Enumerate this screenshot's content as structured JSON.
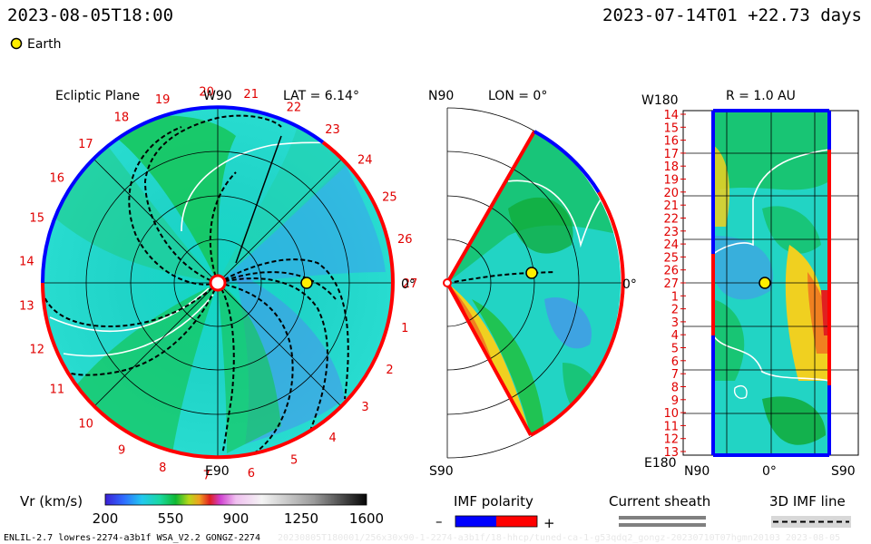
{
  "header": {
    "datetime": "2023-08-05T18:00",
    "reference": "2023-07-14T01 +22.73 days",
    "legend_earth": "Earth"
  },
  "colors": {
    "earth_fill": "#ffee00",
    "polarity_negative": "#0000ff",
    "polarity_positive": "#ff0000",
    "sheath_gray": "#808080"
  },
  "chart_data": [
    {
      "type": "heatmap",
      "panel": "ecliptic",
      "title": "Ecliptic Plane",
      "top_label": "W90",
      "bottom_label": "E90",
      "right_label": "0°",
      "lat_label": "LAT = 6.14°",
      "rotation_labels": [
        "1",
        "2",
        "3",
        "4",
        "5",
        "6",
        "7",
        "8",
        "9",
        "10",
        "11",
        "12",
        "13",
        "14",
        "15",
        "16",
        "17",
        "18",
        "19",
        "20",
        "21",
        "22",
        "23",
        "24",
        "25",
        "26",
        "27"
      ]
    },
    {
      "type": "heatmap",
      "panel": "meridional",
      "top_label": "N90",
      "bottom_label": "S90",
      "right_label": "0°",
      "lon_label": "LON = 0°"
    },
    {
      "type": "heatmap",
      "panel": "radial",
      "r_label": "R = 1.0 AU",
      "top_label": "W180",
      "bottom_label": "E180",
      "x_tick_labels": [
        "N90",
        "0°",
        "S90"
      ],
      "y_tick_labels": [
        "14",
        "15",
        "16",
        "17",
        "18",
        "19",
        "20",
        "21",
        "22",
        "23",
        "24",
        "25",
        "26",
        "27",
        "1",
        "2",
        "3",
        "4",
        "5",
        "6",
        "7",
        "8",
        "9",
        "10",
        "11",
        "12",
        "13"
      ]
    }
  ],
  "colorbar": {
    "label": "Vr (km/s)",
    "ticks": [
      "200",
      "550",
      "900",
      "1250",
      "1600"
    ],
    "range": [
      200,
      1600
    ]
  },
  "imf_legend": {
    "title": "IMF polarity",
    "minus": "–",
    "plus": "+"
  },
  "sheath_legend": {
    "title": "Current sheath"
  },
  "imf_line_legend": {
    "title": "3D IMF line"
  },
  "footer": {
    "model": "ENLIL-2.7 lowres-2274-a3b1f WSA_V2.2 GONGZ-2274",
    "run_info": "20230805T180001/256x30x90-1-2274-a3b1f/18-hhcp/tuned-ca-1-g53qdq2_gongz-20230710T07hgmn20103    2023-08-05"
  }
}
